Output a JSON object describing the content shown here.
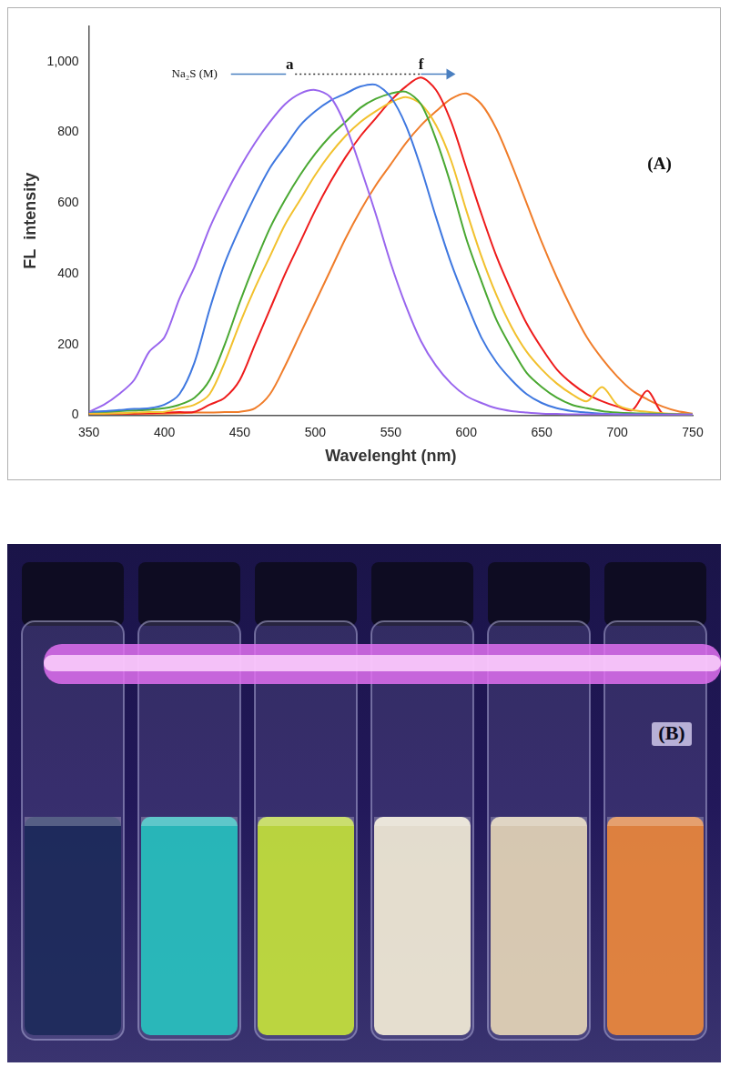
{
  "chart_data": {
    "type": "line",
    "x_label": "Wavelenght (nm)",
    "y_label": "FL  intensity",
    "xlim": [
      350,
      750
    ],
    "xticks": [
      350,
      400,
      450,
      500,
      550,
      600,
      650,
      700,
      750
    ],
    "ylim": [
      0,
      1100
    ],
    "yticks": [
      0,
      200,
      400,
      600,
      800,
      1000
    ],
    "grid": false,
    "x": [
      350,
      360,
      370,
      380,
      390,
      400,
      410,
      420,
      430,
      440,
      450,
      460,
      470,
      480,
      490,
      500,
      510,
      520,
      530,
      540,
      550,
      560,
      570,
      580,
      590,
      600,
      610,
      620,
      630,
      640,
      650,
      660,
      670,
      680,
      690,
      700,
      710,
      720,
      730,
      740,
      750
    ],
    "series": [
      {
        "color": "#9966ee",
        "values": [
          10,
          30,
          60,
          100,
          180,
          220,
          330,
          420,
          530,
          620,
          700,
          770,
          830,
          880,
          910,
          920,
          900,
          820,
          700,
          570,
          430,
          310,
          210,
          140,
          90,
          55,
          35,
          20,
          12,
          8,
          5,
          4,
          3,
          3,
          3,
          3,
          2,
          2,
          2,
          2,
          2
        ]
      },
      {
        "color": "#3f78e0",
        "values": [
          10,
          12,
          15,
          18,
          20,
          30,
          60,
          150,
          300,
          430,
          530,
          620,
          700,
          760,
          820,
          860,
          890,
          910,
          930,
          935,
          900,
          820,
          700,
          560,
          430,
          320,
          220,
          150,
          100,
          60,
          35,
          20,
          12,
          8,
          5,
          3,
          3,
          3,
          2,
          2,
          2
        ]
      },
      {
        "color": "#4aa832",
        "values": [
          10,
          10,
          12,
          14,
          16,
          20,
          30,
          50,
          100,
          200,
          320,
          430,
          530,
          610,
          680,
          740,
          790,
          830,
          870,
          895,
          910,
          915,
          880,
          780,
          650,
          500,
          380,
          270,
          190,
          120,
          80,
          50,
          30,
          20,
          12,
          8,
          6,
          5,
          4,
          3,
          2
        ]
      },
      {
        "color": "#f2c12e",
        "values": [
          5,
          5,
          6,
          8,
          9,
          10,
          20,
          30,
          60,
          150,
          260,
          360,
          450,
          540,
          610,
          680,
          740,
          790,
          830,
          860,
          885,
          900,
          880,
          820,
          720,
          580,
          450,
          340,
          250,
          180,
          130,
          90,
          60,
          40,
          80,
          30,
          15,
          10,
          6,
          4,
          3
        ]
      },
      {
        "color": "#ee1c1c",
        "values": [
          5,
          5,
          5,
          5,
          6,
          8,
          9,
          10,
          30,
          50,
          100,
          200,
          300,
          400,
          490,
          580,
          660,
          730,
          790,
          840,
          890,
          930,
          955,
          920,
          830,
          700,
          570,
          450,
          350,
          260,
          190,
          130,
          90,
          60,
          40,
          25,
          15,
          70,
          5,
          3,
          2
        ]
      },
      {
        "color": "#f07d2a",
        "values": [
          5,
          5,
          5,
          5,
          5,
          5,
          6,
          8,
          8,
          9,
          10,
          20,
          60,
          140,
          230,
          320,
          410,
          500,
          580,
          650,
          710,
          770,
          820,
          860,
          895,
          910,
          880,
          810,
          710,
          600,
          490,
          390,
          300,
          220,
          160,
          110,
          70,
          45,
          25,
          12,
          5
        ]
      }
    ],
    "annotations": [
      {
        "text": "Na₂S (M)",
        "x": 420,
        "y": 965
      },
      {
        "text": "a",
        "x": 483,
        "y": 990
      },
      {
        "text": "f",
        "x": 570,
        "y": 990
      },
      {
        "text": "(A)",
        "x": 728,
        "y": 710
      }
    ]
  },
  "photo": {
    "label": "(B)",
    "vial_colors": [
      "#1c2a5a",
      "#27c4c0",
      "#c8e63a",
      "#f6f0d8",
      "#e8d8b8",
      "#f08a3a"
    ]
  }
}
